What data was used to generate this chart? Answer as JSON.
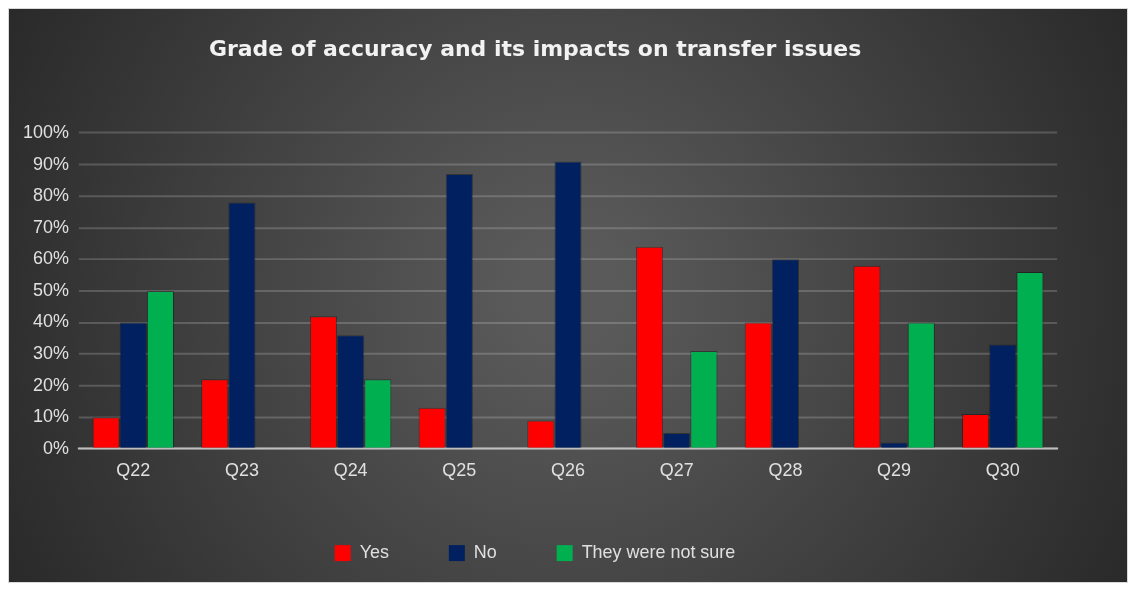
{
  "chart_data": {
    "type": "bar",
    "title": "Grade of accuracy and its impacts on transfer issues",
    "categories": [
      "Q22",
      "Q23",
      "Q24",
      "Q25",
      "Q26",
      "Q27",
      "Q28",
      "Q29",
      "Q30"
    ],
    "series": [
      {
        "name": "Yes",
        "color": "#ff0000",
        "values": [
          10,
          22,
          42,
          13,
          9,
          64,
          40,
          58,
          11
        ]
      },
      {
        "name": "No",
        "color": "#002060",
        "values": [
          40,
          78,
          36,
          87,
          91,
          5,
          60,
          2,
          33
        ]
      },
      {
        "name": "They were not sure",
        "color": "#00b050",
        "values": [
          50,
          null,
          22,
          null,
          null,
          31,
          null,
          40,
          56
        ]
      }
    ],
    "ylim": [
      0,
      100
    ],
    "yticks": [
      {
        "value": 0,
        "label": "0%"
      },
      {
        "value": 10,
        "label": "10%"
      },
      {
        "value": 20,
        "label": "20%"
      },
      {
        "value": 30,
        "label": "30%"
      },
      {
        "value": 40,
        "label": "40%"
      },
      {
        "value": 50,
        "label": "50%"
      },
      {
        "value": 60,
        "label": "60%"
      },
      {
        "value": 70,
        "label": "70%"
      },
      {
        "value": 80,
        "label": "80%"
      },
      {
        "value": 90,
        "label": "90%"
      },
      {
        "value": 100,
        "label": "100%"
      }
    ],
    "grid": "y",
    "legend": "bottom"
  }
}
